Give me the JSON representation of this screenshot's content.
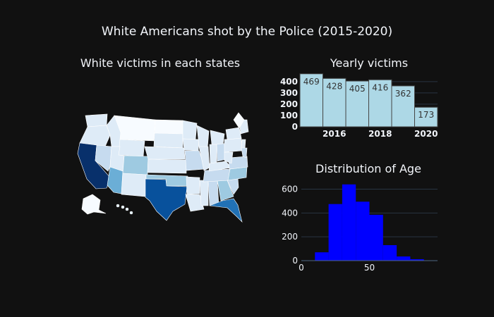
{
  "figure": {
    "title": "White Americans shot by the Police (2015-2020)",
    "colors": {
      "background": "#111111",
      "text": "#f2f5fa",
      "grid": "#283442",
      "bar_fill": "#add8e6",
      "hist_fill": "#0000ff",
      "map_scale": [
        "#f7fbff",
        "#deebf7",
        "#c6dbef",
        "#9ecae1",
        "#6baed6",
        "#4292c6",
        "#2171b5",
        "#08519c",
        "#08306b"
      ]
    }
  },
  "chart_data": [
    {
      "type": "choropleth",
      "title": "White victims in each states",
      "colorscale": "Blues",
      "scope": "usa",
      "highlighted_states": [
        "California",
        "Texas",
        "Florida",
        "Arizona",
        "Oklahoma",
        "Colorado",
        "North Carolina"
      ]
    },
    {
      "type": "bar",
      "title": "Yearly victims",
      "x": [
        2015,
        2016,
        2017,
        2018,
        2019,
        2020
      ],
      "values": [
        469,
        428,
        405,
        416,
        362,
        173
      ],
      "x_ticks": [
        2016,
        2018,
        2020
      ],
      "y_ticks": [
        0,
        100,
        200,
        300,
        400
      ],
      "ylim": [
        0,
        480
      ],
      "grid": true
    },
    {
      "type": "histogram",
      "title": "Distribution of Age",
      "bins": [
        {
          "start": 10,
          "end": 20,
          "count": 70
        },
        {
          "start": 20,
          "end": 30,
          "count": 475
        },
        {
          "start": 30,
          "end": 40,
          "count": 640
        },
        {
          "start": 40,
          "end": 50,
          "count": 495
        },
        {
          "start": 50,
          "end": 60,
          "count": 385
        },
        {
          "start": 60,
          "end": 70,
          "count": 130
        },
        {
          "start": 70,
          "end": 80,
          "count": 35
        },
        {
          "start": 80,
          "end": 90,
          "count": 12
        }
      ],
      "x_ticks": [
        0,
        50
      ],
      "y_ticks": [
        0,
        200,
        400,
        600
      ],
      "xlim": [
        0,
        100
      ],
      "ylim": [
        0,
        680
      ],
      "grid": true
    }
  ]
}
